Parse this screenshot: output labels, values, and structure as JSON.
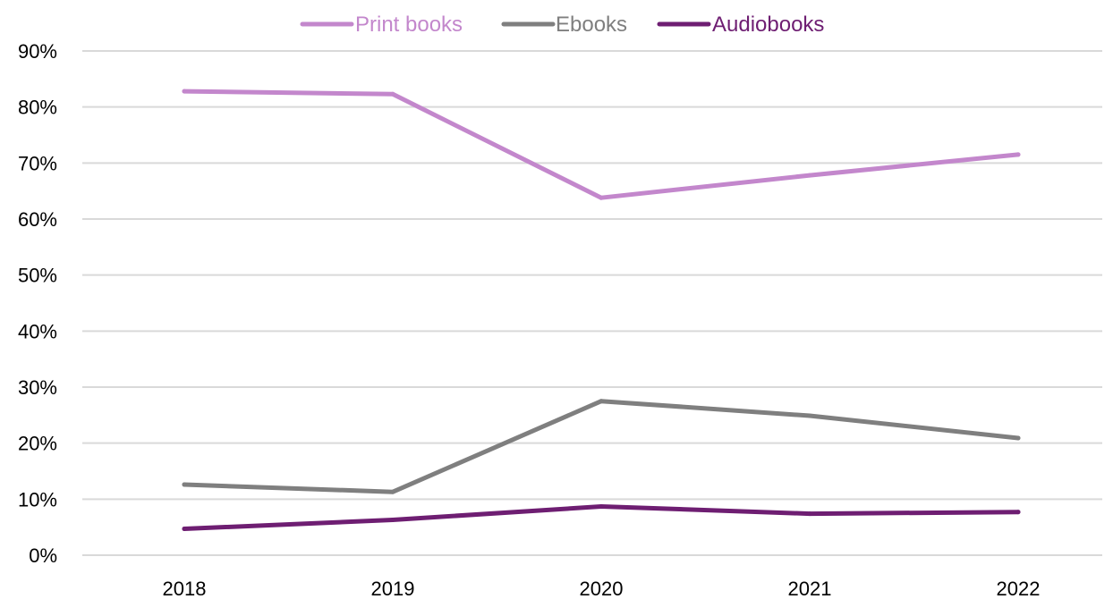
{
  "chart_data": {
    "type": "line",
    "title": "",
    "xlabel": "",
    "ylabel": "",
    "categories": [
      "2018",
      "2019",
      "2020",
      "2021",
      "2022"
    ],
    "ylim": [
      0,
      90
    ],
    "yticks": [
      0,
      10,
      20,
      30,
      40,
      50,
      60,
      70,
      80,
      90
    ],
    "ytick_labels": [
      "0%",
      "10%",
      "20%",
      "30%",
      "40%",
      "50%",
      "60%",
      "70%",
      "80%",
      "90%"
    ],
    "grid": "horizontal",
    "legend": "top-center",
    "series": [
      {
        "name": "Print books",
        "color": "#c387cc",
        "values": [
          82.8,
          82.3,
          63.8,
          67.8,
          71.5
        ]
      },
      {
        "name": "Ebooks",
        "color": "#7f7f7f",
        "values": [
          12.6,
          11.3,
          27.5,
          24.9,
          20.9
        ]
      },
      {
        "name": "Audiobooks",
        "color": "#6e1e72",
        "values": [
          4.7,
          6.3,
          8.7,
          7.4,
          7.7
        ]
      }
    ]
  }
}
